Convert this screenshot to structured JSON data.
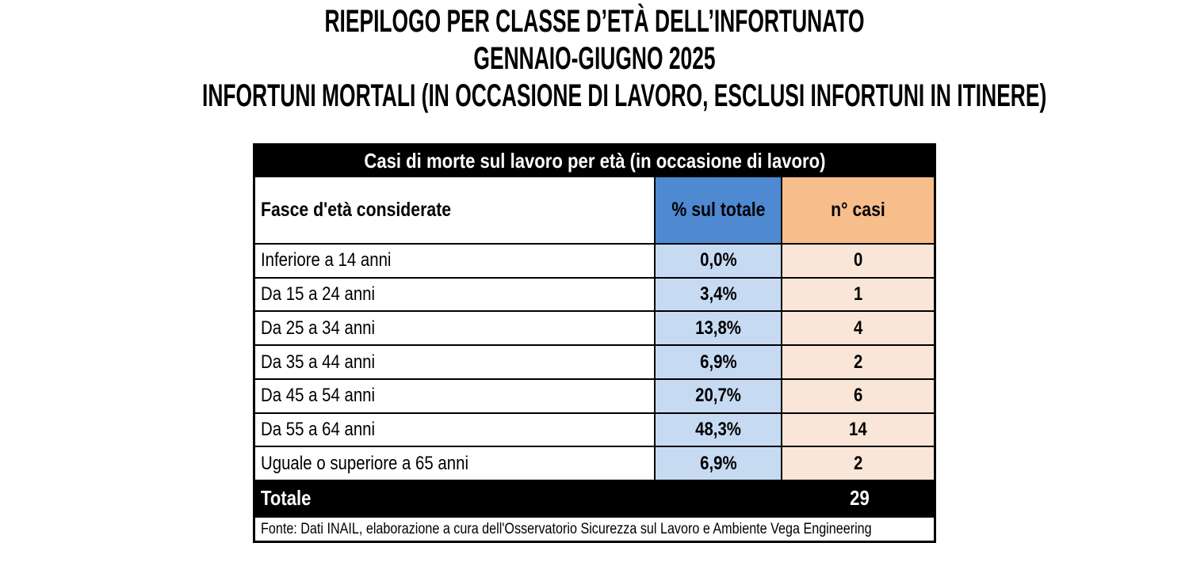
{
  "title": {
    "line1": "RIEPILOGO PER CLASSE D’ETÀ DELL’INFORTUNATO",
    "line2": "GENNAIO-GIUGNO 2025",
    "line3": "INFORTUNI MORTALI (IN OCCASIONE DI LAVORO, ESCLUSI INFORTUNI IN ITINERE)"
  },
  "table": {
    "caption": "Casi di morte sul lavoro per età (in occasione di lavoro)",
    "columns": {
      "age": "Fasce d'età considerate",
      "pct": "% sul totale",
      "cases": "n° casi"
    },
    "rows": [
      {
        "label": "Inferiore a 14 anni",
        "pct": "0,0%",
        "cases": "0"
      },
      {
        "label": "Da 15 a 24 anni",
        "pct": "3,4%",
        "cases": "1"
      },
      {
        "label": "Da 25 a 34 anni",
        "pct": "13,8%",
        "cases": "4"
      },
      {
        "label": "Da 35 a 44 anni",
        "pct": "6,9%",
        "cases": "2"
      },
      {
        "label": "Da 45 a 54 anni",
        "pct": "20,7%",
        "cases": "6"
      },
      {
        "label": "Da 55 a 64 anni",
        "pct": "48,3%",
        "cases": "14"
      },
      {
        "label": "Uguale o superiore a 65 anni",
        "pct": "6,9%",
        "cases": "2"
      }
    ],
    "total": {
      "label": "Totale",
      "value": "29"
    },
    "source": "Fonte: Dati INAIL, elaborazione a cura dell'Osservatorio Sicurezza sul Lavoro e Ambiente Vega Engineering"
  },
  "colors": {
    "header_blue": "#4E89D2",
    "header_orange": "#F7BD8B",
    "cell_blue": "#C6DAF2",
    "cell_orange": "#FAE6D8",
    "band_black": "#000000"
  },
  "chart_data": {
    "type": "table",
    "title": "Casi di morte sul lavoro per età (in occasione di lavoro)",
    "subtitle": "Infortuni mortali in occasione di lavoro, esclusi infortuni in itinere — Gennaio-Giugno 2025",
    "columns": [
      "Fasce d'età considerate",
      "% sul totale",
      "n° casi"
    ],
    "categories": [
      "Inferiore a 14 anni",
      "Da 15 a 24 anni",
      "Da 25 a 34 anni",
      "Da 35 a 44 anni",
      "Da 45 a 54 anni",
      "Da 55 a 64 anni",
      "Uguale o superiore a 65 anni"
    ],
    "series": [
      {
        "name": "% sul totale",
        "values": [
          0.0,
          3.4,
          13.8,
          6.9,
          20.7,
          48.3,
          6.9
        ]
      },
      {
        "name": "n° casi",
        "values": [
          0,
          1,
          4,
          2,
          6,
          14,
          2
        ]
      }
    ],
    "total": {
      "label": "Totale",
      "n_casi": 29
    },
    "source": "Fonte: Dati INAIL, elaborazione a cura dell'Osservatorio Sicurezza sul Lavoro e Ambiente Vega Engineering"
  }
}
